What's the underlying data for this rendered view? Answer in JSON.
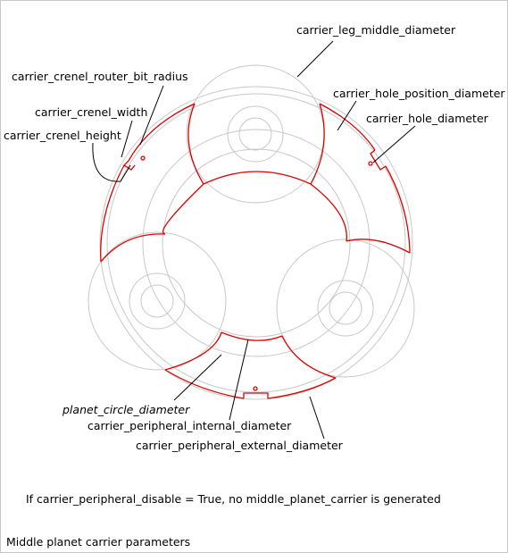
{
  "labels": {
    "leg_middle_diameter": "carrier_leg_middle_diameter",
    "router_bit_radius": "carrier_crenel_router_bit_radius",
    "crenel_width": "carrier_crenel_width",
    "crenel_height": "carrier_crenel_height",
    "hole_position_diameter": "carrier_hole_position_diameter",
    "hole_diameter": "carrier_hole_diameter",
    "planet_circle_diameter": "planet_circle_diameter",
    "peripheral_internal_diameter": "carrier_peripheral_internal_diameter",
    "peripheral_external_diameter": "carrier_peripheral_external_diameter"
  },
  "note": "If carrier_peripheral_disable = True, no middle_planet_carrier is generated",
  "caption": "Middle planet carrier parameters",
  "colors": {
    "outline": "#e00000",
    "construction": "#c8c8c8",
    "text": "#000000"
  }
}
